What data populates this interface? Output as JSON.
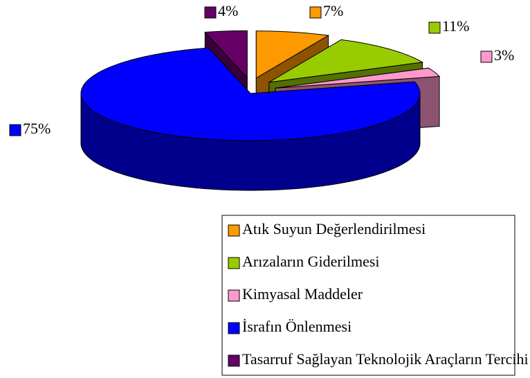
{
  "chart_data": {
    "type": "pie",
    "categories": [
      "Atık Suyun Değerlendirilmesi",
      "Arızaların Giderilmesi",
      "Kimyasal Maddeler",
      "İsrafın Önlenmesi",
      "Tasarruf Sağlayan Teknolojik Araçların Tercihi"
    ],
    "values": [
      7,
      11,
      3,
      75,
      4
    ],
    "value_labels": [
      "7%",
      "11%",
      "3%",
      "75%",
      "4%"
    ],
    "colors": [
      "#ff9900",
      "#99cc00",
      "#ff99cc",
      "#0000ff",
      "#660066"
    ],
    "legend": "bottom"
  }
}
